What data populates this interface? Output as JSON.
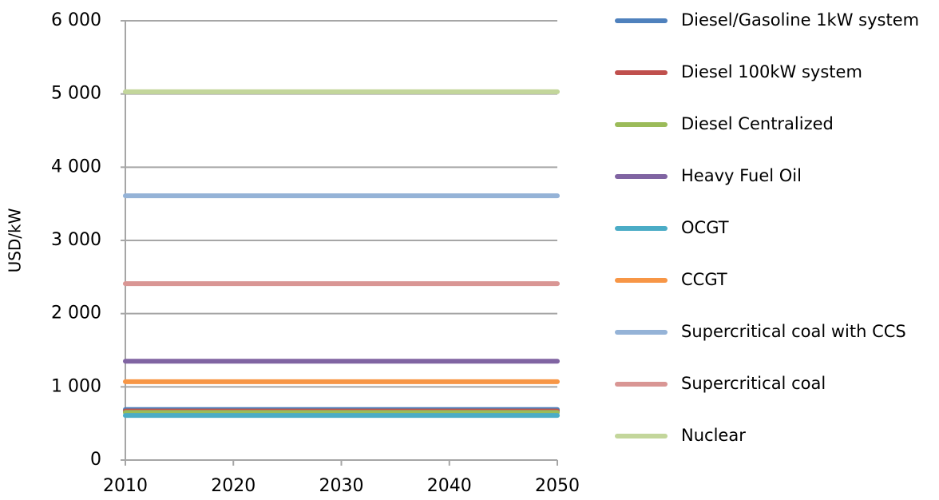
{
  "chart_data": {
    "type": "line",
    "y_label": "USD/kW",
    "x": [
      2010,
      2020,
      2030,
      2040,
      2050
    ],
    "xlim": [
      2010,
      2050
    ],
    "xticks": [
      2010,
      2020,
      2030,
      2040,
      2050
    ],
    "ylim": [
      0,
      6000
    ],
    "yticks": [
      0,
      {
        "value": 1000,
        "label": "1 000"
      },
      {
        "value": 2000,
        "label": "2 000"
      },
      {
        "value": 3000,
        "label": "3 000"
      },
      {
        "value": 4000,
        "label": "4 000"
      },
      {
        "value": 5000,
        "label": "5 000"
      },
      {
        "value": 6000,
        "label": "6 000"
      }
    ],
    "grid": true,
    "legend": "right",
    "series": [
      {
        "name": "Diesel/Gasoline 1kW system",
        "color": "#4f81bd",
        "values": [
          690,
          690,
          690,
          690,
          690
        ]
      },
      {
        "name": "Diesel 100kW system",
        "color": "#c0504d",
        "values": [
          670,
          670,
          670,
          670,
          670
        ]
      },
      {
        "name": "Diesel Centralized",
        "color": "#9bbb59",
        "values": [
          650,
          650,
          650,
          650,
          650
        ]
      },
      {
        "name": "Heavy Fuel Oil",
        "color": "#8064a2",
        "values": [
          1350,
          1350,
          1350,
          1350,
          1350
        ]
      },
      {
        "name": "OCGT",
        "color": "#4bacc6",
        "values": [
          610,
          610,
          610,
          610,
          610
        ]
      },
      {
        "name": "CCGT",
        "color": "#f79646",
        "values": [
          1070,
          1070,
          1070,
          1070,
          1070
        ]
      },
      {
        "name": "Supercritical coal with CCS",
        "color": "#95b3d7",
        "values": [
          3610,
          3610,
          3610,
          3610,
          3610
        ]
      },
      {
        "name": "Supercritical coal",
        "color": "#d99694",
        "values": [
          2410,
          2410,
          2410,
          2410,
          2410
        ]
      },
      {
        "name": "Nuclear",
        "color": "#c3d69b",
        "values": [
          5030,
          5030,
          5030,
          5030,
          5030
        ]
      }
    ]
  }
}
